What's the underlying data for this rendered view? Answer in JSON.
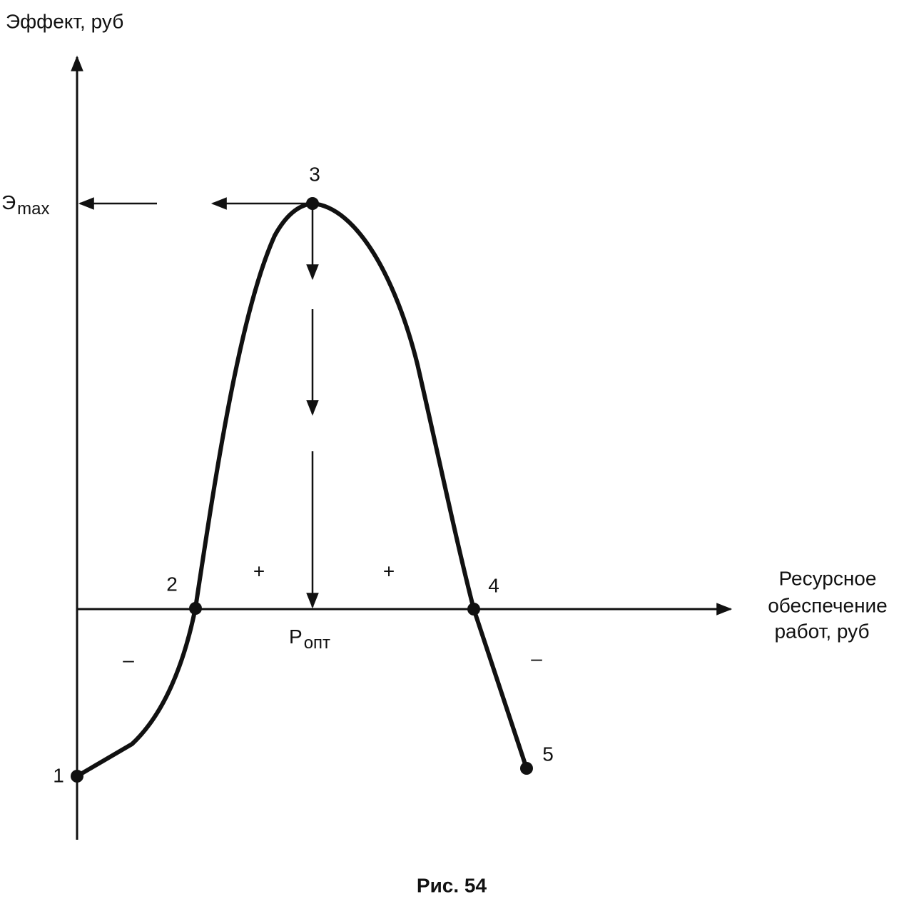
{
  "axes": {
    "y_label": "Эффект, руб",
    "x_label": [
      "Ресурсное",
      "обеспечение",
      "работ, руб"
    ]
  },
  "e_max": {
    "main": "Э",
    "sub": "max"
  },
  "p_opt": {
    "main": "Р",
    "sub": "опт"
  },
  "points": [
    {
      "label": "1"
    },
    {
      "label": "2"
    },
    {
      "label": "3"
    },
    {
      "label": "4"
    },
    {
      "label": "5"
    }
  ],
  "signs": [
    "+",
    "+",
    "–",
    "–"
  ],
  "caption": "Рис. 54"
}
